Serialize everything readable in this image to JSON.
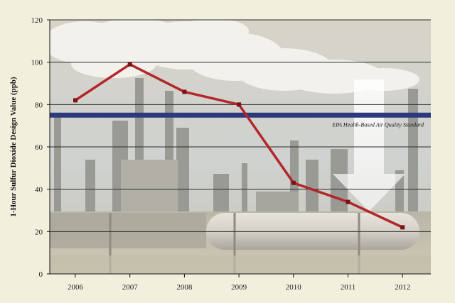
{
  "chart_data": {
    "type": "line",
    "title": "",
    "xlabel": "",
    "ylabel": "1-Hour Sulfur Dioxide Design Value (ppb)",
    "x": [
      "2006",
      "2007",
      "2008",
      "2009",
      "2010",
      "2011",
      "2012"
    ],
    "series": [
      {
        "values": [
          82,
          99,
          86,
          80,
          43,
          34,
          22
        ]
      }
    ],
    "yticks": [
      "0",
      "20",
      "40",
      "60",
      "80",
      "100",
      "120"
    ],
    "ylim": [
      0,
      120
    ],
    "grid": true,
    "reference_line": {
      "label": "EPA Health-Based Air Quality Standard",
      "value": 75
    },
    "background": "photo of an oil refinery with smokestack emitting white smoke, large downward arrow",
    "colors": {
      "line": "#b3262a",
      "marker": "#7a1216",
      "reference": "#2a3a7c",
      "page": "#f2efdd"
    }
  }
}
